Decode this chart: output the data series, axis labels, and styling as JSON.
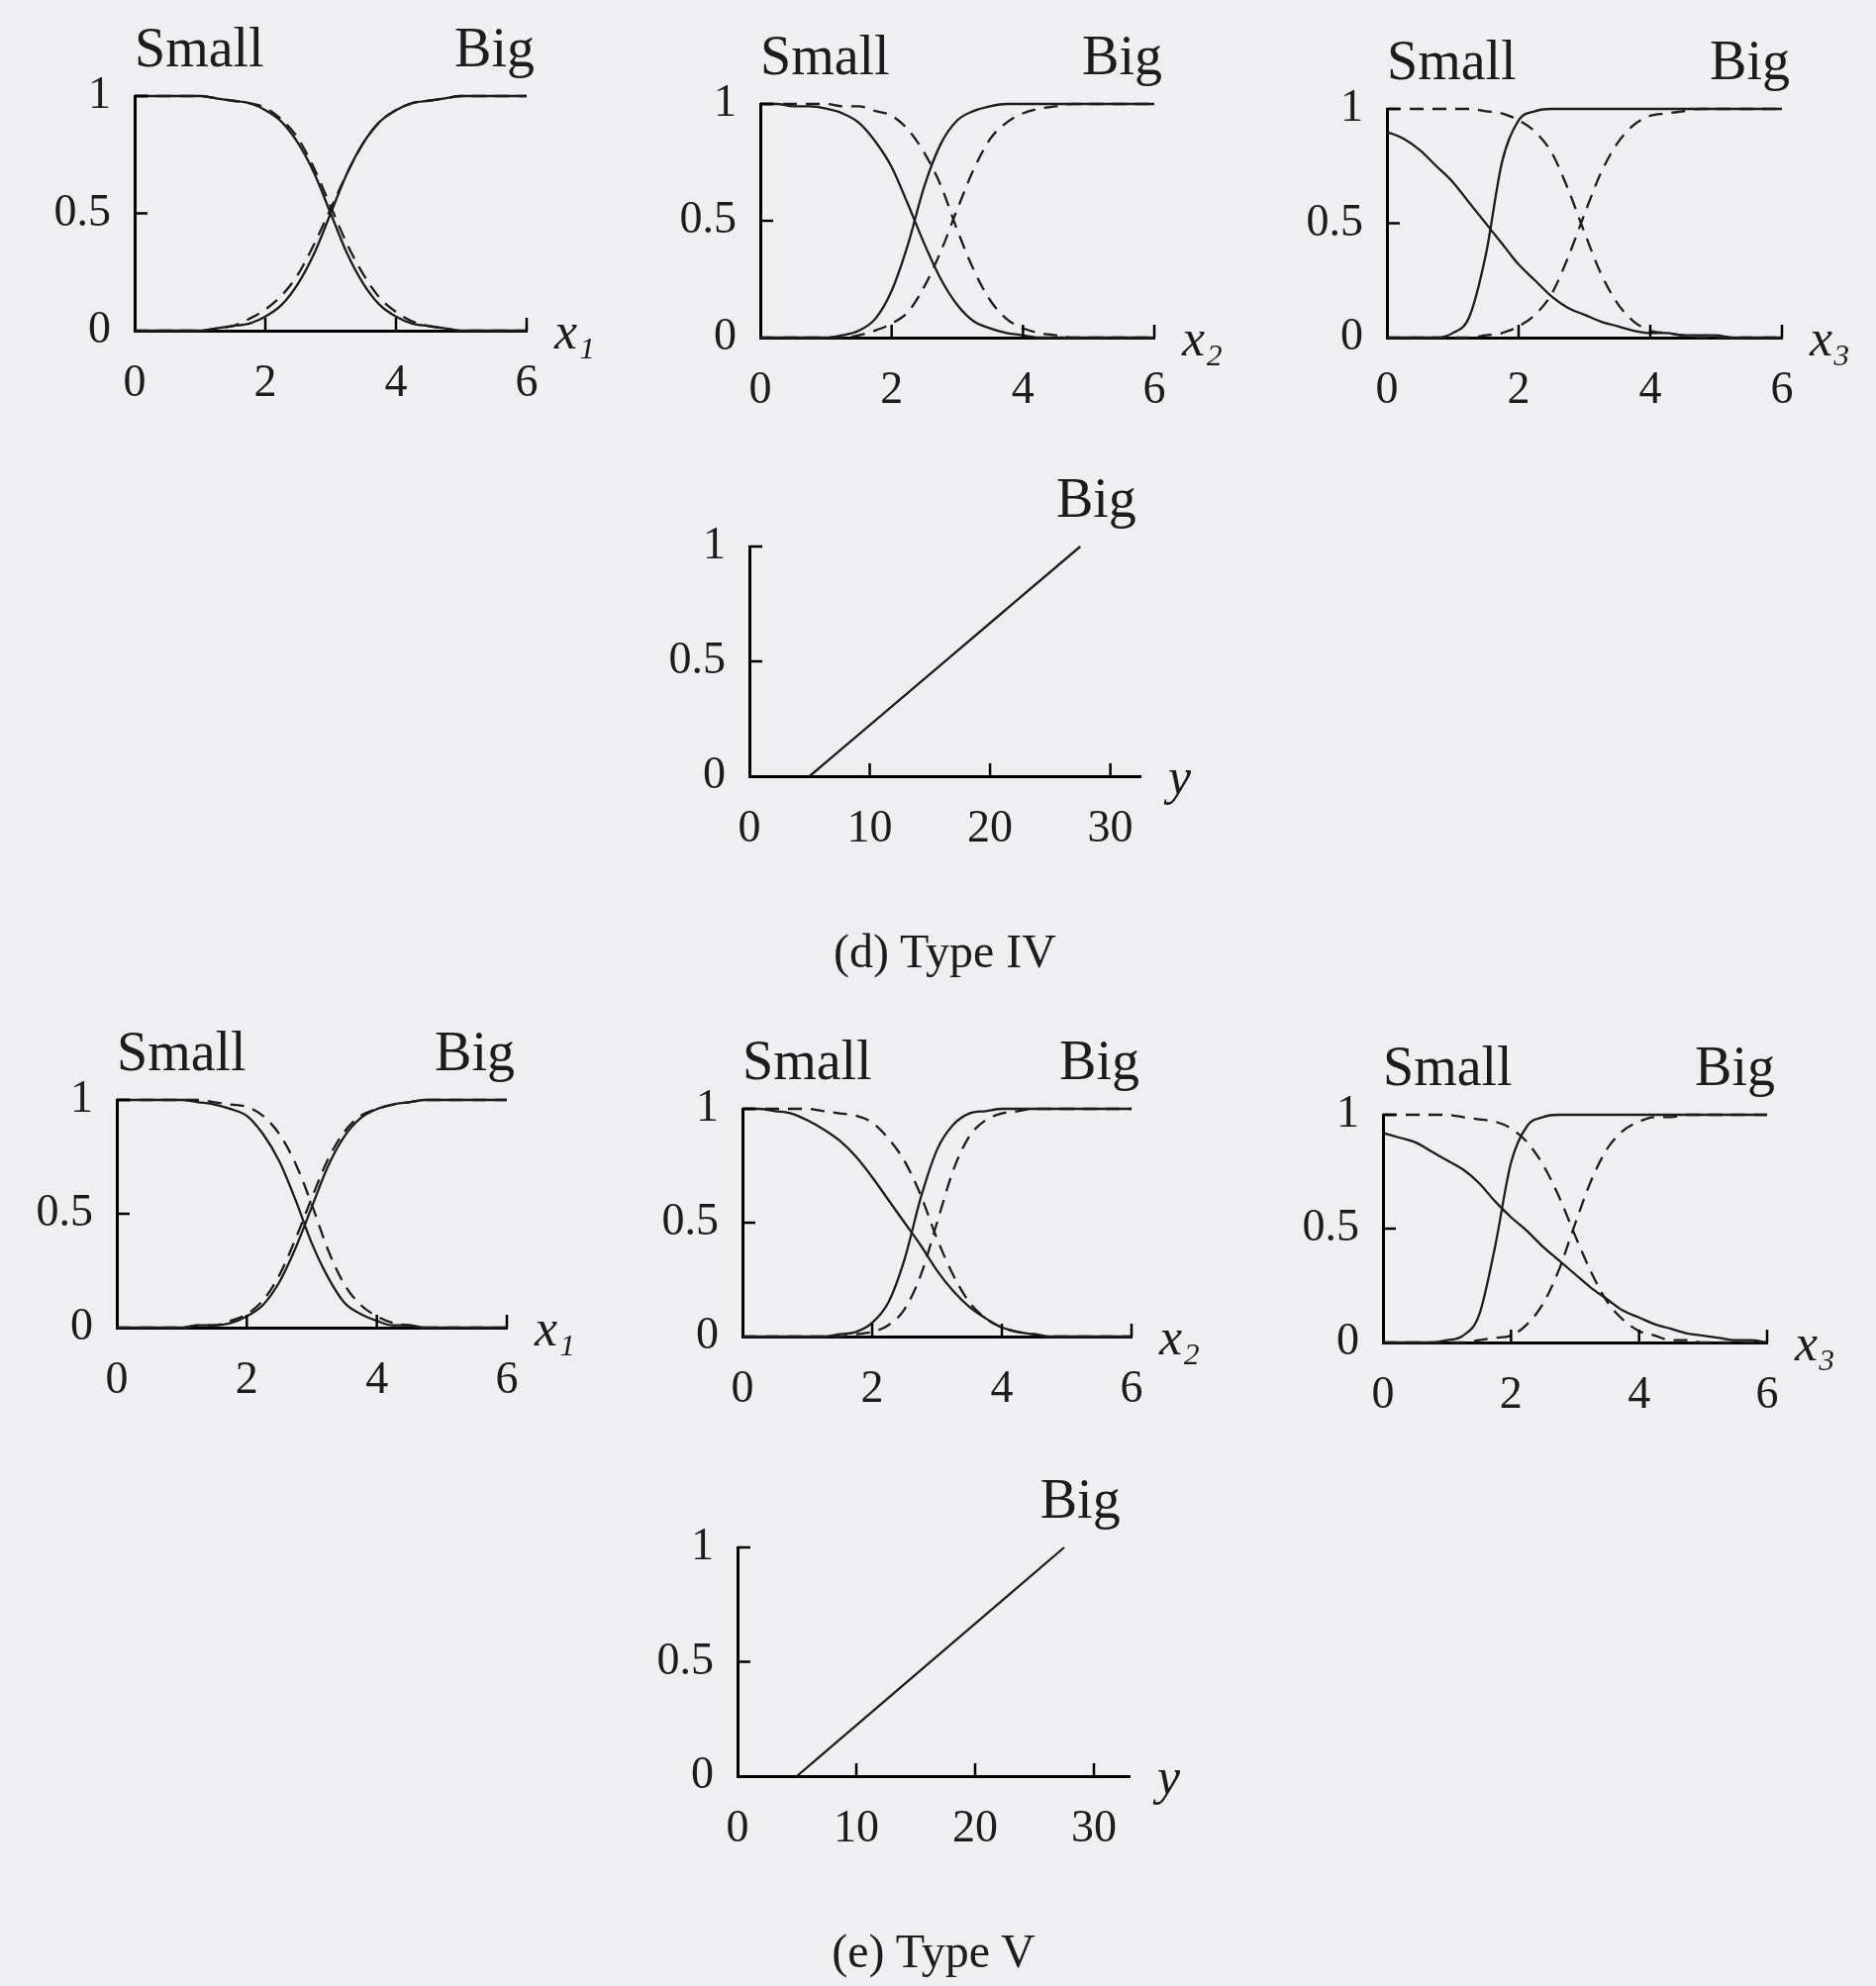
{
  "chart_data": [
    {
      "type": "line",
      "xlabel": "x₁",
      "x": [
        0,
        0.25,
        0.5,
        0.75,
        1,
        1.25,
        1.5,
        1.75,
        2,
        2.25,
        2.5,
        2.75,
        3,
        3.25,
        3.5,
        3.75,
        4,
        4.25,
        4.5,
        4.75,
        5,
        5.25,
        5.5,
        5.75,
        6
      ],
      "xlim": [
        0,
        6
      ],
      "xticks": [
        0,
        2,
        4,
        6
      ],
      "ylim": [
        0,
        1
      ],
      "yticks": [
        0,
        0.5,
        1
      ],
      "annotations": [
        {
          "text": "Small",
          "x": 0,
          "y": 1
        },
        {
          "text": "Big",
          "x": 6,
          "y": 1
        }
      ],
      "series": [
        {
          "color": "#1c1c1c",
          "line_style": "solid",
          "values": [
            1,
            1,
            1,
            1,
            1,
            0.99,
            0.98,
            0.97,
            0.94,
            0.89,
            0.8,
            0.67,
            0.5,
            0.33,
            0.2,
            0.11,
            0.06,
            0.03,
            0.02,
            0.01,
            0,
            0,
            0,
            0,
            0
          ]
        },
        {
          "color": "#1c1c1c",
          "line_style": "solid",
          "values": [
            0,
            0,
            0,
            0,
            0,
            0.01,
            0.02,
            0.03,
            0.06,
            0.11,
            0.2,
            0.33,
            0.5,
            0.67,
            0.8,
            0.89,
            0.94,
            0.97,
            0.98,
            0.99,
            1,
            1,
            1,
            1,
            1
          ]
        },
        {
          "color": "#1c1c1c",
          "line_style": "dashed",
          "values": [
            1,
            1,
            1,
            1,
            1,
            0.99,
            0.98,
            0.97,
            0.95,
            0.9,
            0.82,
            0.69,
            0.53,
            0.37,
            0.24,
            0.14,
            0.08,
            0.04,
            0.02,
            0.01,
            0,
            0,
            0,
            0,
            0
          ]
        },
        {
          "color": "#1c1c1c",
          "line_style": "dashed",
          "values": [
            0,
            0,
            0,
            0,
            0,
            0.01,
            0.02,
            0.05,
            0.09,
            0.15,
            0.24,
            0.37,
            0.52,
            0.67,
            0.8,
            0.89,
            0.94,
            0.97,
            0.98,
            0.99,
            1,
            1,
            1,
            1,
            1
          ]
        }
      ]
    },
    {
      "type": "line",
      "xlabel": "x₂",
      "x": [
        0,
        0.25,
        0.5,
        0.75,
        1,
        1.25,
        1.5,
        1.75,
        2,
        2.25,
        2.5,
        2.75,
        3,
        3.25,
        3.5,
        3.75,
        4,
        4.25,
        4.5,
        4.75,
        5,
        5.25,
        5.5,
        5.75,
        6
      ],
      "xlim": [
        0,
        6
      ],
      "xticks": [
        0,
        2,
        4,
        6
      ],
      "ylim": [
        0,
        1
      ],
      "yticks": [
        0,
        0.5,
        1
      ],
      "annotations": [
        {
          "text": "Small",
          "x": 0,
          "y": 1
        },
        {
          "text": "Big",
          "x": 6,
          "y": 1
        }
      ],
      "series": [
        {
          "color": "#1c1c1c",
          "line_style": "solid",
          "values": [
            1,
            1,
            0.99,
            0.99,
            0.98,
            0.96,
            0.92,
            0.84,
            0.73,
            0.57,
            0.4,
            0.25,
            0.14,
            0.07,
            0.04,
            0.02,
            0.01,
            0,
            0,
            0,
            0,
            0,
            0,
            0,
            0
          ]
        },
        {
          "color": "#1c1c1c",
          "line_style": "solid",
          "values": [
            0,
            0,
            0,
            0,
            0,
            0.01,
            0.03,
            0.08,
            0.2,
            0.4,
            0.65,
            0.83,
            0.93,
            0.97,
            0.99,
            1,
            1,
            1,
            1,
            1,
            1,
            1,
            1,
            1,
            1
          ]
        },
        {
          "color": "#1c1c1c",
          "line_style": "dashed",
          "values": [
            1,
            1,
            1,
            1,
            1,
            0.99,
            0.99,
            0.97,
            0.95,
            0.89,
            0.79,
            0.65,
            0.46,
            0.29,
            0.16,
            0.08,
            0.04,
            0.02,
            0.01,
            0,
            0,
            0,
            0,
            0,
            0
          ]
        },
        {
          "color": "#1c1c1c",
          "line_style": "dashed",
          "values": [
            0,
            0,
            0,
            0,
            0,
            0,
            0.01,
            0.03,
            0.06,
            0.11,
            0.22,
            0.37,
            0.55,
            0.72,
            0.85,
            0.92,
            0.96,
            0.98,
            0.99,
            1,
            1,
            1,
            1,
            1,
            1
          ]
        }
      ]
    },
    {
      "type": "line",
      "xlabel": "x₃",
      "x": [
        0,
        0.25,
        0.5,
        0.75,
        1,
        1.25,
        1.5,
        1.75,
        2,
        2.25,
        2.5,
        2.75,
        3,
        3.25,
        3.5,
        3.75,
        4,
        4.25,
        4.5,
        4.75,
        5,
        5.25,
        5.5,
        5.75,
        6
      ],
      "xlim": [
        0,
        6
      ],
      "xticks": [
        0,
        2,
        4,
        6
      ],
      "ylim": [
        0,
        1
      ],
      "yticks": [
        0,
        0.5,
        1
      ],
      "annotations": [
        {
          "text": "Small",
          "x": 0,
          "y": 1
        },
        {
          "text": "Big",
          "x": 6,
          "y": 1
        }
      ],
      "series": [
        {
          "color": "#1c1c1c",
          "line_style": "solid",
          "values": [
            0.9,
            0.87,
            0.82,
            0.75,
            0.68,
            0.59,
            0.5,
            0.41,
            0.32,
            0.25,
            0.18,
            0.13,
            0.1,
            0.07,
            0.05,
            0.03,
            0.02,
            0.02,
            0.01,
            0.01,
            0.01,
            0,
            0,
            0,
            0
          ]
        },
        {
          "color": "#1c1c1c",
          "line_style": "solid",
          "values": [
            0,
            0,
            0,
            0,
            0.02,
            0.09,
            0.36,
            0.77,
            0.95,
            0.99,
            1,
            1,
            1,
            1,
            1,
            1,
            1,
            1,
            1,
            1,
            1,
            1,
            1,
            1,
            1
          ]
        },
        {
          "color": "#1c1c1c",
          "line_style": "dashed",
          "values": [
            1,
            1,
            1,
            1,
            1,
            1,
            0.99,
            0.98,
            0.95,
            0.9,
            0.81,
            0.65,
            0.46,
            0.28,
            0.15,
            0.07,
            0.03,
            0.02,
            0.01,
            0,
            0,
            0,
            0,
            0,
            0
          ]
        },
        {
          "color": "#1c1c1c",
          "line_style": "dashed",
          "values": [
            0,
            0,
            0,
            0,
            0,
            0,
            0.01,
            0.02,
            0.05,
            0.1,
            0.19,
            0.35,
            0.54,
            0.72,
            0.85,
            0.93,
            0.97,
            0.98,
            0.99,
            1,
            1,
            1,
            1,
            1,
            1
          ]
        }
      ]
    },
    {
      "type": "line",
      "xlabel": "y",
      "x": [
        5,
        27.5
      ],
      "xlim": [
        0,
        32.5
      ],
      "xticks": [
        0,
        10,
        20,
        30
      ],
      "ylim": [
        0,
        1
      ],
      "yticks": [
        0,
        0.5,
        1
      ],
      "annotations": [
        {
          "text": "Big",
          "x": 27.5,
          "y": 1
        },
        "(d) Type IV"
      ],
      "series": [
        {
          "color": "#1c1c1c",
          "line_style": "solid",
          "values": [
            0,
            1
          ]
        }
      ]
    },
    {
      "type": "line",
      "xlabel": "x₁",
      "x": [
        0,
        0.25,
        0.5,
        0.75,
        1,
        1.25,
        1.5,
        1.75,
        2,
        2.25,
        2.5,
        2.75,
        3,
        3.25,
        3.5,
        3.75,
        4,
        4.25,
        4.5,
        4.75,
        5,
        5.25,
        5.5,
        5.75,
        6
      ],
      "xlim": [
        0,
        6
      ],
      "xticks": [
        0,
        2,
        4,
        6
      ],
      "ylim": [
        0,
        1
      ],
      "yticks": [
        0,
        0.5,
        1
      ],
      "annotations": [
        {
          "text": "Small",
          "x": 0,
          "y": 1
        },
        {
          "text": "Big",
          "x": 6,
          "y": 1
        }
      ],
      "series": [
        {
          "color": "#1c1c1c",
          "line_style": "solid",
          "values": [
            1,
            1,
            1,
            1,
            1,
            0.99,
            0.98,
            0.96,
            0.93,
            0.85,
            0.73,
            0.56,
            0.37,
            0.22,
            0.11,
            0.06,
            0.03,
            0.01,
            0.01,
            0,
            0,
            0,
            0,
            0,
            0
          ]
        },
        {
          "color": "#1c1c1c",
          "line_style": "solid",
          "values": [
            0,
            0,
            0,
            0,
            0,
            0.01,
            0.01,
            0.02,
            0.05,
            0.1,
            0.2,
            0.35,
            0.53,
            0.71,
            0.84,
            0.92,
            0.96,
            0.98,
            0.99,
            1,
            1,
            1,
            1,
            1,
            1
          ]
        },
        {
          "color": "#1c1c1c",
          "line_style": "dashed",
          "values": [
            1,
            1,
            1,
            1,
            1,
            1,
            0.99,
            0.98,
            0.97,
            0.93,
            0.85,
            0.72,
            0.54,
            0.34,
            0.19,
            0.1,
            0.05,
            0.02,
            0.01,
            0,
            0,
            0,
            0,
            0,
            0
          ]
        },
        {
          "color": "#1c1c1c",
          "line_style": "dashed",
          "values": [
            0,
            0,
            0,
            0,
            0,
            0.01,
            0.01,
            0.03,
            0.06,
            0.12,
            0.23,
            0.39,
            0.57,
            0.74,
            0.86,
            0.93,
            0.96,
            0.98,
            0.99,
            1,
            1,
            1,
            1,
            1,
            1
          ]
        }
      ]
    },
    {
      "type": "line",
      "xlabel": "x₂",
      "x": [
        0,
        0.25,
        0.5,
        0.75,
        1,
        1.25,
        1.5,
        1.75,
        2,
        2.25,
        2.5,
        2.75,
        3,
        3.25,
        3.5,
        3.75,
        4,
        4.25,
        4.5,
        4.75,
        5,
        5.25,
        5.5,
        5.75,
        6
      ],
      "xlim": [
        0,
        6
      ],
      "xticks": [
        0,
        2,
        4,
        6
      ],
      "ylim": [
        0,
        1
      ],
      "yticks": [
        0,
        0.5,
        1
      ],
      "annotations": [
        {
          "text": "Small",
          "x": 0,
          "y": 1
        },
        {
          "text": "Big",
          "x": 6,
          "y": 1
        }
      ],
      "series": [
        {
          "color": "#1c1c1c",
          "line_style": "solid",
          "values": [
            1,
            1,
            0.99,
            0.98,
            0.95,
            0.91,
            0.86,
            0.79,
            0.7,
            0.6,
            0.5,
            0.4,
            0.29,
            0.2,
            0.13,
            0.08,
            0.04,
            0.02,
            0.01,
            0,
            0,
            0,
            0,
            0,
            0
          ]
        },
        {
          "color": "#1c1c1c",
          "line_style": "solid",
          "values": [
            0,
            0,
            0,
            0,
            0,
            0,
            0.01,
            0.02,
            0.06,
            0.15,
            0.34,
            0.61,
            0.82,
            0.93,
            0.98,
            0.99,
            1,
            1,
            1,
            1,
            1,
            1,
            1,
            1,
            1
          ]
        },
        {
          "color": "#1c1c1c",
          "line_style": "dashed",
          "values": [
            1,
            1,
            1,
            1,
            1,
            0.99,
            0.98,
            0.97,
            0.94,
            0.87,
            0.77,
            0.62,
            0.43,
            0.27,
            0.15,
            0.08,
            0.04,
            0.02,
            0.01,
            0,
            0,
            0,
            0,
            0,
            0
          ]
        },
        {
          "color": "#1c1c1c",
          "line_style": "dashed",
          "values": [
            0,
            0,
            0,
            0,
            0,
            0,
            0,
            0.01,
            0.02,
            0.05,
            0.12,
            0.27,
            0.5,
            0.73,
            0.88,
            0.95,
            0.98,
            0.99,
            1,
            1,
            1,
            1,
            1,
            1,
            1
          ]
        }
      ]
    },
    {
      "type": "line",
      "xlabel": "x₃",
      "x": [
        0,
        0.25,
        0.5,
        0.75,
        1,
        1.25,
        1.5,
        1.75,
        2,
        2.25,
        2.5,
        2.75,
        3,
        3.25,
        3.5,
        3.75,
        4,
        4.25,
        4.5,
        4.75,
        5,
        5.25,
        5.5,
        5.75,
        6
      ],
      "xlim": [
        0,
        6
      ],
      "xticks": [
        0,
        2,
        4,
        6
      ],
      "ylim": [
        0,
        1
      ],
      "yticks": [
        0,
        0.5,
        1
      ],
      "annotations": [
        {
          "text": "Small",
          "x": 0,
          "y": 1
        },
        {
          "text": "Big",
          "x": 6,
          "y": 1
        }
      ],
      "series": [
        {
          "color": "#1c1c1c",
          "line_style": "solid",
          "values": [
            0.92,
            0.9,
            0.88,
            0.84,
            0.8,
            0.76,
            0.7,
            0.62,
            0.55,
            0.49,
            0.42,
            0.36,
            0.3,
            0.24,
            0.19,
            0.14,
            0.11,
            0.08,
            0.06,
            0.04,
            0.03,
            0.02,
            0.01,
            0.01,
            0
          ]
        },
        {
          "color": "#1c1c1c",
          "line_style": "solid",
          "values": [
            0,
            0,
            0,
            0,
            0.01,
            0.03,
            0.12,
            0.42,
            0.79,
            0.95,
            0.99,
            1,
            1,
            1,
            1,
            1,
            1,
            1,
            1,
            1,
            1,
            1,
            1,
            1,
            1
          ]
        },
        {
          "color": "#1c1c1c",
          "line_style": "dashed",
          "values": [
            1,
            1,
            1,
            1,
            1,
            0.99,
            0.98,
            0.97,
            0.94,
            0.88,
            0.78,
            0.64,
            0.47,
            0.31,
            0.18,
            0.1,
            0.05,
            0.03,
            0.01,
            0.01,
            0,
            0,
            0,
            0,
            0
          ]
        },
        {
          "color": "#1c1c1c",
          "line_style": "dashed",
          "values": [
            0,
            0,
            0,
            0,
            0,
            0,
            0.01,
            0.02,
            0.03,
            0.08,
            0.17,
            0.32,
            0.52,
            0.71,
            0.85,
            0.93,
            0.97,
            0.99,
            0.99,
            1,
            1,
            1,
            1,
            1,
            1
          ]
        }
      ]
    },
    {
      "type": "line",
      "xlabel": "y",
      "x": [
        5,
        27.5
      ],
      "xlim": [
        0,
        33
      ],
      "xticks": [
        0,
        10,
        20,
        30
      ],
      "ylim": [
        0,
        1
      ],
      "yticks": [
        0,
        0.5,
        1
      ],
      "annotations": [
        {
          "text": "Big",
          "x": 27.5,
          "y": 1
        },
        "(e) Type V"
      ],
      "series": [
        {
          "color": "#1c1c1c",
          "line_style": "solid",
          "values": [
            0,
            1
          ]
        }
      ]
    }
  ]
}
